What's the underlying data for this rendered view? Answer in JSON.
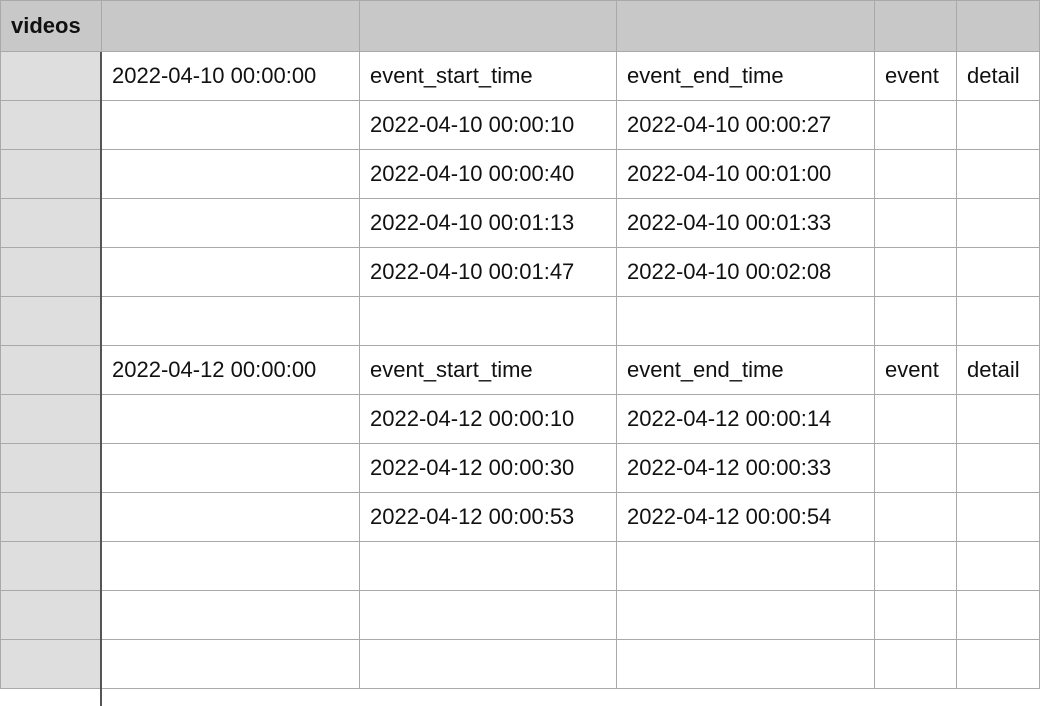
{
  "table": {
    "name": "videos",
    "rows": [
      [
        "2022-04-10 00:00:00",
        "event_start_time",
        "event_end_time",
        "event",
        "detail"
      ],
      [
        "",
        "2022-04-10 00:00:10",
        "2022-04-10 00:00:27",
        "",
        ""
      ],
      [
        "",
        "2022-04-10 00:00:40",
        "2022-04-10 00:01:00",
        "",
        ""
      ],
      [
        "",
        "2022-04-10 00:01:13",
        "2022-04-10 00:01:33",
        "",
        ""
      ],
      [
        "",
        "2022-04-10 00:01:47",
        "2022-04-10 00:02:08",
        "",
        ""
      ],
      [
        "",
        "",
        "",
        "",
        ""
      ],
      [
        "2022-04-12 00:00:00",
        "event_start_time",
        "event_end_time",
        "event",
        "detail"
      ],
      [
        "",
        "2022-04-12 00:00:10",
        "2022-04-12 00:00:14",
        "",
        ""
      ],
      [
        "",
        "2022-04-12 00:00:30",
        "2022-04-12 00:00:33",
        "",
        ""
      ],
      [
        "",
        "2022-04-12 00:00:53",
        "2022-04-12 00:00:54",
        "",
        ""
      ],
      [
        "",
        "",
        "",
        "",
        ""
      ],
      [
        "",
        "",
        "",
        "",
        ""
      ],
      [
        "",
        "",
        "",
        "",
        ""
      ]
    ]
  },
  "colors": {
    "header_bg": "#c8c8c8",
    "row_header_bg": "#dedede",
    "grid_line": "#a9a9a9",
    "divider": "#555555"
  }
}
